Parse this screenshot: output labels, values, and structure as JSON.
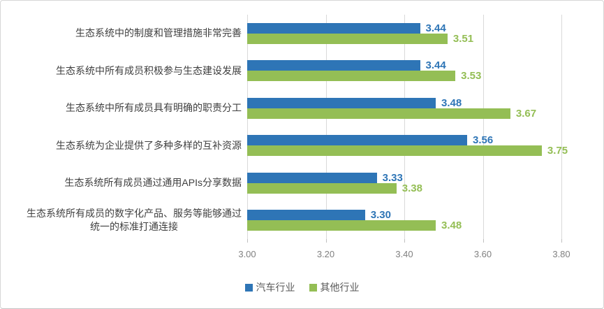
{
  "chart_data": {
    "type": "bar",
    "orientation": "horizontal",
    "title": "",
    "xlabel": "",
    "ylabel": "",
    "xlim": [
      3.0,
      3.8
    ],
    "x_ticks": [
      "3.00",
      "3.20",
      "3.40",
      "3.60",
      "3.80"
    ],
    "grid": true,
    "legend_position": "bottom-center",
    "value_label_decimals": 2,
    "categories": [
      "生态系统中的制度和管理措施非常完善",
      "生态系统中所有成员积极参与生态建设发展",
      "生态系统中所有成员具有明确的职责分工",
      "生态系统为企业提供了多种多样的互补资源",
      "生态系统所有成员通过通用APIs分享数据",
      "生态系统所有成员的数字化产品、服务等能够通过\n统一的标准打通连接"
    ],
    "series": [
      {
        "name": "汽车行业",
        "color": "#2E75B6",
        "values": [
          3.44,
          3.44,
          3.48,
          3.56,
          3.33,
          3.3
        ]
      },
      {
        "name": "其他行业",
        "color": "#94BE55",
        "values": [
          3.51,
          3.53,
          3.67,
          3.75,
          3.38,
          3.48
        ]
      }
    ]
  },
  "colors": {
    "gridline": "#d9d9d9",
    "tick_mark": "#bfbfbf",
    "axis_text": "#808080",
    "category_text": "#404040",
    "legend_text": "#595959",
    "border": "#d6d6d6",
    "background": "#ffffff"
  }
}
